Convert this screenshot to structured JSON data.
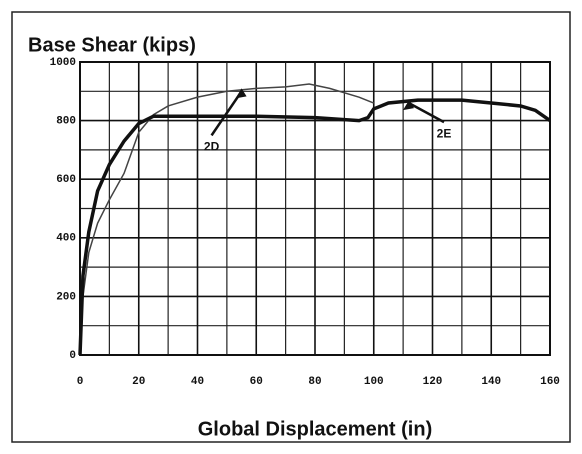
{
  "chart_data": {
    "type": "line",
    "title": "Base Shear (kips)",
    "x_label": "Global Displacement (in)",
    "xlim": [
      0,
      160
    ],
    "xticks": [
      0,
      20,
      40,
      60,
      80,
      100,
      120,
      140,
      160
    ],
    "x_minor_ticks": [
      10,
      30,
      50,
      70,
      90,
      110,
      130,
      150
    ],
    "ylim": [
      0,
      1000
    ],
    "yticks": [
      0,
      200,
      400,
      600,
      800,
      1000
    ],
    "y_minor_ticks": [
      100,
      300,
      500,
      700,
      900
    ],
    "grid": true,
    "series": [
      {
        "name": "2D",
        "color": "#444444",
        "width": 1.5,
        "x": [
          0,
          1,
          3,
          6,
          10,
          15,
          20,
          25,
          30,
          40,
          50,
          60,
          70,
          78,
          85,
          95,
          100
        ],
        "values": [
          0,
          200,
          350,
          450,
          530,
          620,
          760,
          820,
          850,
          880,
          900,
          910,
          915,
          925,
          910,
          880,
          860
        ]
      },
      {
        "name": "2E",
        "color": "#111111",
        "width": 3.5,
        "x": [
          0,
          1,
          3,
          6,
          10,
          15,
          20,
          25,
          40,
          60,
          80,
          95,
          98,
          100,
          105,
          115,
          130,
          140,
          150,
          155,
          160
        ],
        "values": [
          0,
          270,
          420,
          560,
          650,
          730,
          790,
          815,
          815,
          815,
          810,
          800,
          810,
          840,
          860,
          870,
          870,
          860,
          850,
          835,
          800
        ]
      }
    ],
    "annotations": [
      {
        "text": "2D",
        "x": 55,
        "y": 910
      },
      {
        "text": "2E",
        "x": 112,
        "y": 870
      }
    ]
  }
}
